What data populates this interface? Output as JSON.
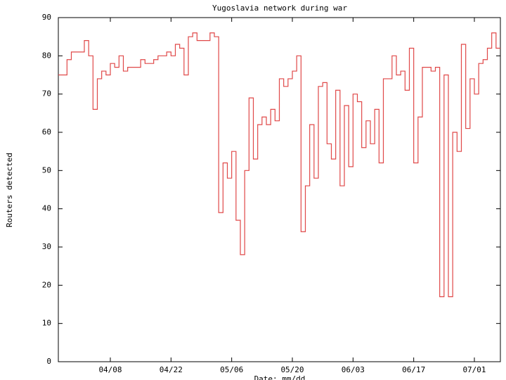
{
  "chart_data": {
    "type": "line",
    "title": "Yugoslavia network during war",
    "x_label": "Date: mm/dd",
    "y_label": "Routers detected",
    "step": "post",
    "x": [
      "03/27",
      "03/29",
      "03/30",
      "04/02",
      "04/03",
      "04/04",
      "04/05",
      "04/06",
      "04/07",
      "04/08",
      "04/09",
      "04/10",
      "04/11",
      "04/12",
      "04/15",
      "04/16",
      "04/18",
      "04/19",
      "04/21",
      "04/22",
      "04/23",
      "04/24",
      "04/25",
      "04/26",
      "04/27",
      "04/28",
      "05/01",
      "05/02",
      "05/03",
      "05/04",
      "05/05",
      "05/06",
      "05/07",
      "05/08",
      "05/09",
      "05/10",
      "05/11",
      "05/12",
      "05/13",
      "05/14",
      "05/15",
      "05/16",
      "05/17",
      "05/18",
      "05/19",
      "05/20",
      "05/21",
      "05/22",
      "05/23",
      "05/24",
      "05/25",
      "05/26",
      "05/27",
      "05/28",
      "05/29",
      "05/30",
      "05/31",
      "06/01",
      "06/02",
      "06/03",
      "06/04",
      "06/05",
      "06/06",
      "06/07",
      "06/08",
      "06/09",
      "06/10",
      "06/12",
      "06/13",
      "06/14",
      "06/15",
      "06/16",
      "06/17",
      "06/18",
      "06/19",
      "06/21",
      "06/22",
      "06/23",
      "06/24",
      "06/25",
      "06/26",
      "06/27",
      "06/28",
      "06/29",
      "06/30",
      "07/01",
      "07/02",
      "07/03",
      "07/04",
      "07/05",
      "07/06"
    ],
    "series": [
      {
        "color": "#e04848",
        "values": [
          75,
          79,
          81,
          84,
          80,
          66,
          74,
          76,
          75,
          78,
          77,
          80,
          76,
          77,
          79,
          78,
          79,
          80,
          81,
          80,
          83,
          82,
          75,
          85,
          86,
          84,
          86,
          85,
          39,
          52,
          48,
          55,
          37,
          28,
          50,
          69,
          53,
          62,
          64,
          62,
          66,
          63,
          74,
          72,
          74,
          76,
          80,
          34,
          46,
          62,
          48,
          72,
          73,
          57,
          53,
          71,
          46,
          67,
          51,
          70,
          68,
          56,
          63,
          57,
          66,
          52,
          74,
          80,
          75,
          76,
          71,
          82,
          52,
          64,
          77,
          76,
          77,
          17,
          75,
          17,
          60,
          55,
          83,
          61,
          74,
          70,
          78,
          79,
          82,
          86,
          82
        ]
      }
    ],
    "xlim": [
      "03/27",
      "07/07"
    ],
    "xticks": [
      "04/08",
      "04/22",
      "05/06",
      "05/20",
      "06/03",
      "06/17",
      "07/01"
    ],
    "ylim": [
      0,
      90
    ],
    "yticks": [
      0,
      10,
      20,
      30,
      40,
      50,
      60,
      70,
      80,
      90
    ]
  }
}
